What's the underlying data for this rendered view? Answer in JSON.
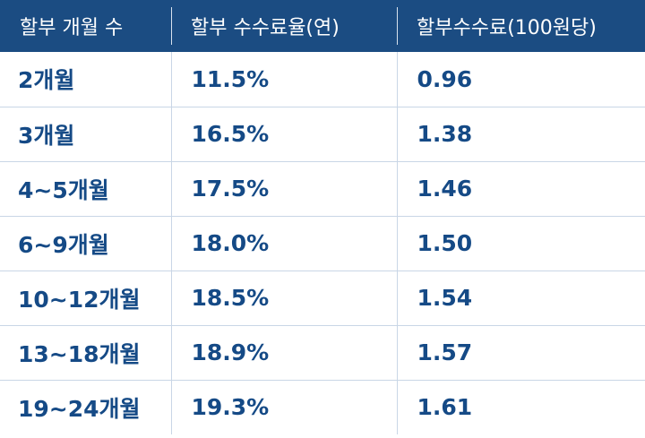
{
  "table": {
    "headers": [
      "할부 개월 수",
      "할부 수수료율(연)",
      "할부수수료(100원당)"
    ],
    "rows": [
      [
        "2개월",
        "11.5%",
        "0.96"
      ],
      [
        "3개월",
        "16.5%",
        "1.38"
      ],
      [
        "4~5개월",
        "17.5%",
        "1.46"
      ],
      [
        "6~9개월",
        "18.0%",
        "1.50"
      ],
      [
        "10~12개월",
        "18.5%",
        "1.54"
      ],
      [
        "13~18개월",
        "18.9%",
        "1.57"
      ],
      [
        "19~24개월",
        "19.3%",
        "1.61"
      ]
    ]
  },
  "colors": {
    "header_background": "#1b4c82",
    "header_text": "#ffffff",
    "body_text": "#154a86",
    "grid_line": "#c9d6e6"
  }
}
